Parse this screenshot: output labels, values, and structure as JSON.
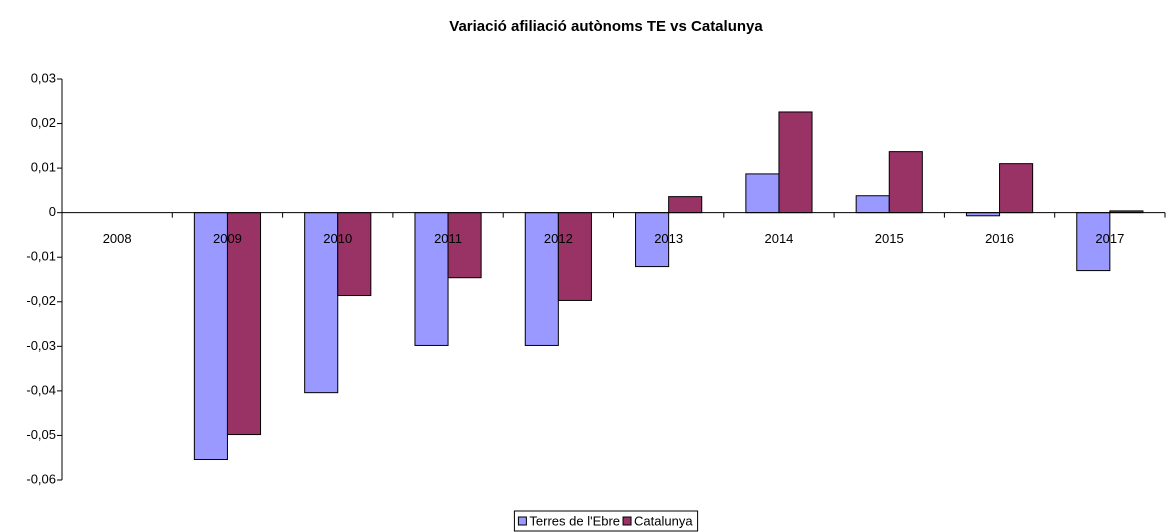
{
  "chart_data": {
    "type": "bar",
    "title": "Variació afiliació autònoms TE vs Catalunya",
    "categories": [
      "2008",
      "2009",
      "2010",
      "2011",
      "2012",
      "2013",
      "2014",
      "2015",
      "2016",
      "2017"
    ],
    "series": [
      {
        "name": "Terres de l'Ebre",
        "color": "#9999ff",
        "values": [
          0,
          -0.0554,
          -0.0404,
          -0.0298,
          -0.0298,
          -0.0121,
          0.0087,
          0.0038,
          -0.0007,
          -0.013
        ]
      },
      {
        "name": "Catalunya",
        "color": "#993366",
        "values": [
          0,
          -0.0498,
          -0.0186,
          -0.0146,
          -0.0197,
          0.0036,
          0.0226,
          0.0137,
          0.011,
          0.0004
        ]
      }
    ],
    "ylim": [
      -0.06,
      0.03
    ],
    "yticks": [
      {
        "value": -0.06,
        "label": "-0,06"
      },
      {
        "value": -0.05,
        "label": "-0,05"
      },
      {
        "value": -0.04,
        "label": "-0,04"
      },
      {
        "value": -0.03,
        "label": "-0,03"
      },
      {
        "value": -0.02,
        "label": "-0,02"
      },
      {
        "value": -0.01,
        "label": "-0,01"
      },
      0,
      {
        "value": 0.01,
        "label": "0,01"
      },
      {
        "value": 0.02,
        "label": "0,02"
      },
      {
        "value": 0.03,
        "label": "0,03"
      }
    ],
    "grid": false,
    "legend": "bottom"
  }
}
